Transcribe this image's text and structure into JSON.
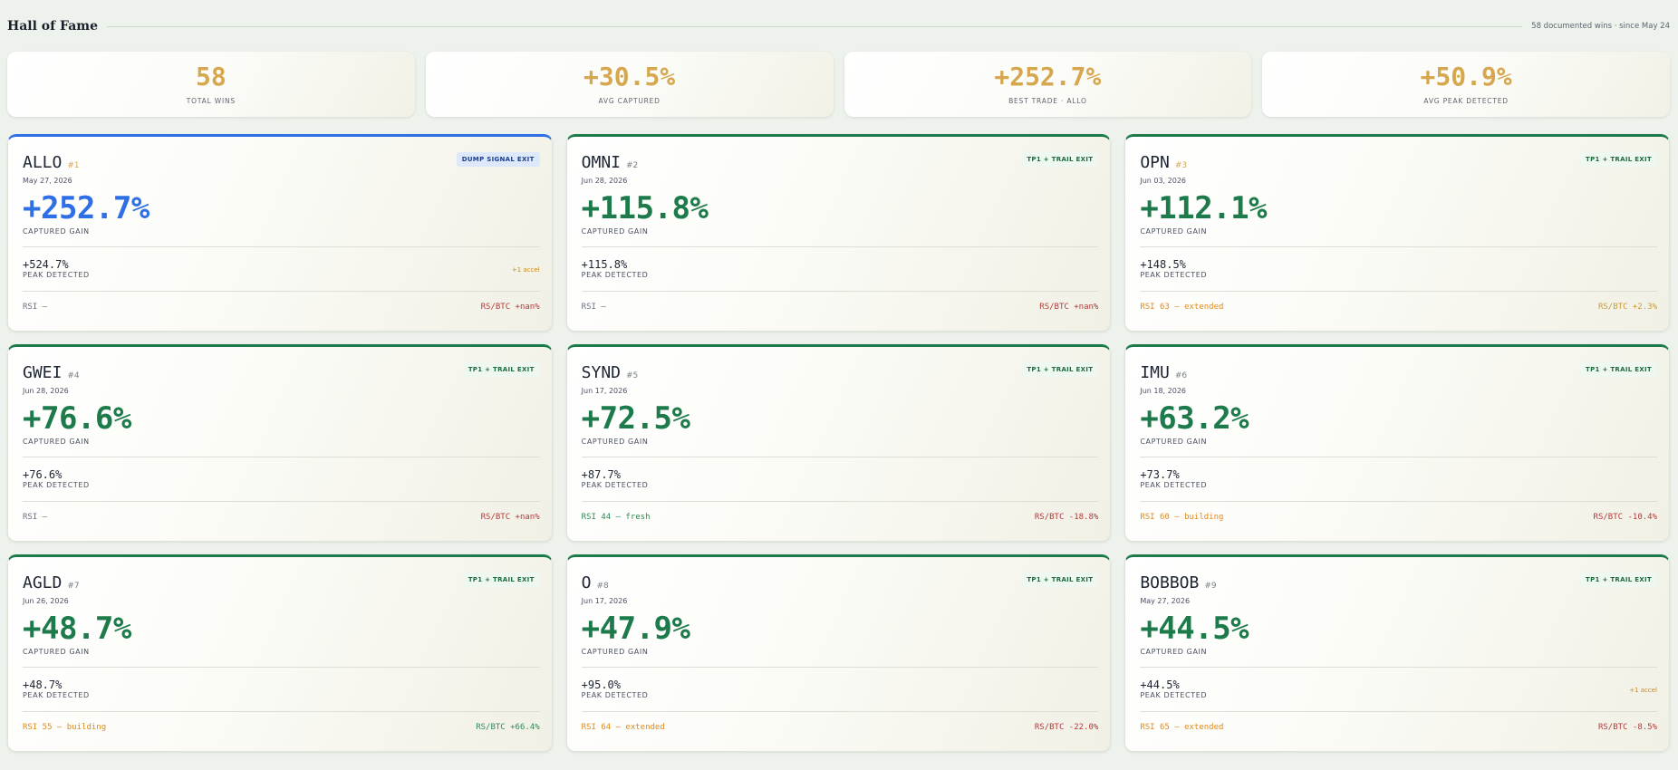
{
  "header": {
    "title": "Hall of Fame",
    "meta": "58 documented wins · since May 24"
  },
  "stats": [
    {
      "value": "58",
      "label": "TOTAL WINS"
    },
    {
      "value": "+30.5%",
      "label": "AVG CAPTURED"
    },
    {
      "value": "+252.7%",
      "label": "BEST TRADE · ALLO"
    },
    {
      "value": "+50.9%",
      "label": "AVG PEAK DETECTED"
    }
  ],
  "labels": {
    "captured": "CAPTURED GAIN",
    "peak": "PEAK DETECTED"
  },
  "colors": {
    "gold": "#d6a74e",
    "green": "#1d7a4a",
    "blue": "#2f6fe6"
  },
  "cards": [
    {
      "symbol": "ALLO",
      "rank": "#1",
      "badge": "DUMP SIGNAL EXIT",
      "date": "May 27, 2026",
      "gain": "+252.7%",
      "peak": "+524.7%",
      "accel": "+1 accel",
      "rsi": "RSI —",
      "rs": "RS/BTC +nan%"
    },
    {
      "symbol": "OMNI",
      "rank": "#2",
      "badge": "TP1 + TRAIL EXIT",
      "date": "Jun 28, 2026",
      "gain": "+115.8%",
      "peak": "+115.8%",
      "accel": "",
      "rsi": "RSI —",
      "rs": "RS/BTC +nan%"
    },
    {
      "symbol": "OPN",
      "rank": "#3",
      "badge": "TP1 + TRAIL EXIT",
      "date": "Jun 03, 2026",
      "gain": "+112.1%",
      "peak": "+148.5%",
      "accel": "",
      "rsi": "RSI 63 — extended",
      "rs": "RS/BTC +2.3%"
    },
    {
      "symbol": "GWEI",
      "rank": "#4",
      "badge": "TP1 + TRAIL EXIT",
      "date": "Jun 28, 2026",
      "gain": "+76.6%",
      "peak": "+76.6%",
      "accel": "",
      "rsi": "RSI —",
      "rs": "RS/BTC +nan%"
    },
    {
      "symbol": "SYND",
      "rank": "#5",
      "badge": "TP1 + TRAIL EXIT",
      "date": "Jun 17, 2026",
      "gain": "+72.5%",
      "peak": "+87.7%",
      "accel": "",
      "rsi": "RSI 44 — fresh",
      "rs": "RS/BTC -18.8%"
    },
    {
      "symbol": "IMU",
      "rank": "#6",
      "badge": "TP1 + TRAIL EXIT",
      "date": "Jun 18, 2026",
      "gain": "+63.2%",
      "peak": "+73.7%",
      "accel": "",
      "rsi": "RSI 60 — building",
      "rs": "RS/BTC -10.4%"
    },
    {
      "symbol": "AGLD",
      "rank": "#7",
      "badge": "TP1 + TRAIL EXIT",
      "date": "Jun 26, 2026",
      "gain": "+48.7%",
      "peak": "+48.7%",
      "accel": "",
      "rsi": "RSI 55 — building",
      "rs": "RS/BTC +66.4%"
    },
    {
      "symbol": "O",
      "rank": "#8",
      "badge": "TP1 + TRAIL EXIT",
      "date": "Jun 17, 2026",
      "gain": "+47.9%",
      "peak": "+95.0%",
      "accel": "",
      "rsi": "RSI 64 — extended",
      "rs": "RS/BTC -22.0%"
    },
    {
      "symbol": "BOBBOB",
      "rank": "#9",
      "badge": "TP1 + TRAIL EXIT",
      "date": "May 27, 2026",
      "gain": "+44.5%",
      "peak": "+44.5%",
      "accel": "+1 accel",
      "rsi": "RSI 65 — extended",
      "rs": "RS/BTC -8.5%"
    }
  ]
}
